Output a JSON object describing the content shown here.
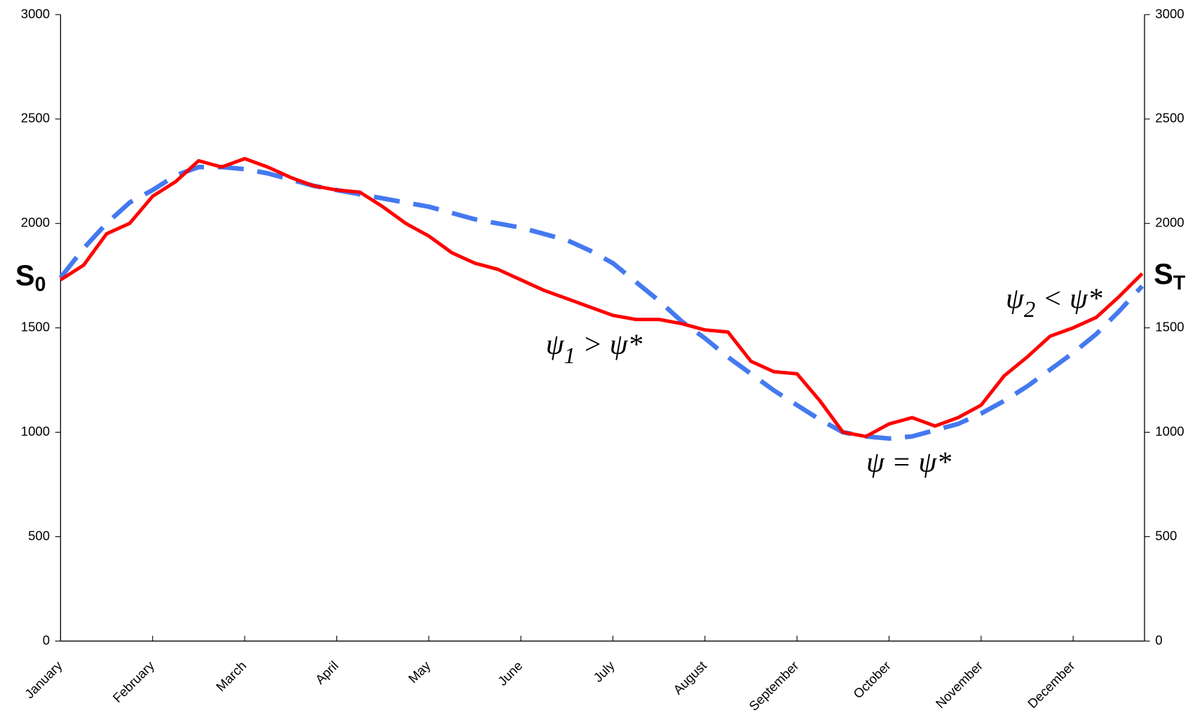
{
  "chart_data": {
    "type": "line",
    "categories": [
      "January",
      null,
      null,
      null,
      "February",
      null,
      null,
      null,
      "March",
      null,
      null,
      null,
      "April",
      null,
      null,
      null,
      "May",
      null,
      null,
      null,
      "June",
      null,
      null,
      null,
      "July",
      null,
      null,
      null,
      "August",
      null,
      null,
      null,
      "September",
      null,
      null,
      null,
      "October",
      null,
      null,
      null,
      "November",
      null,
      null,
      null,
      "December",
      null,
      null,
      null
    ],
    "series": [
      {
        "color": "#ff0000",
        "style": "solid",
        "values": [
          1730,
          1800,
          1950,
          2000,
          2130,
          2200,
          2300,
          2270,
          2310,
          2270,
          2220,
          2180,
          2160,
          2150,
          2080,
          2000,
          1940,
          1860,
          1810,
          1780,
          1730,
          1680,
          1640,
          1600,
          1560,
          1540,
          1540,
          1520,
          1490,
          1480,
          1340,
          1290,
          1280,
          1150,
          1000,
          980,
          1040,
          1070,
          1030,
          1070,
          1130,
          1270,
          1360,
          1460,
          1500,
          1550,
          1650,
          1760
        ]
      },
      {
        "color": "#4479f0",
        "style": "dashed",
        "values": [
          1740,
          1880,
          2000,
          2100,
          2160,
          2230,
          2270,
          2270,
          2260,
          2240,
          2210,
          2180,
          2160,
          2140,
          2120,
          2100,
          2080,
          2050,
          2020,
          2000,
          1980,
          1950,
          1920,
          1870,
          1810,
          1720,
          1630,
          1530,
          1450,
          1360,
          1280,
          1200,
          1130,
          1060,
          1000,
          980,
          970,
          980,
          1010,
          1040,
          1090,
          1150,
          1220,
          1300,
          1380,
          1470,
          1580,
          1700
        ]
      }
    ],
    "ylim": [
      0,
      3000
    ],
    "yticks": [
      0,
      500,
      1000,
      1500,
      2000,
      2500,
      3000
    ],
    "y2lim": [
      0,
      3000
    ],
    "y2ticks": [
      0,
      500,
      1000,
      1500,
      2000,
      2500,
      3000
    ],
    "annotations": [
      {
        "text": "S",
        "sub": "0"
      },
      {
        "text": "S",
        "sub": "T"
      },
      {
        "text": "ψ",
        "sub": "1",
        "tail": " > ψ*"
      },
      {
        "text": "ψ = ψ*"
      },
      {
        "text": "ψ",
        "sub": "2",
        "tail": " < ψ*"
      }
    ]
  }
}
